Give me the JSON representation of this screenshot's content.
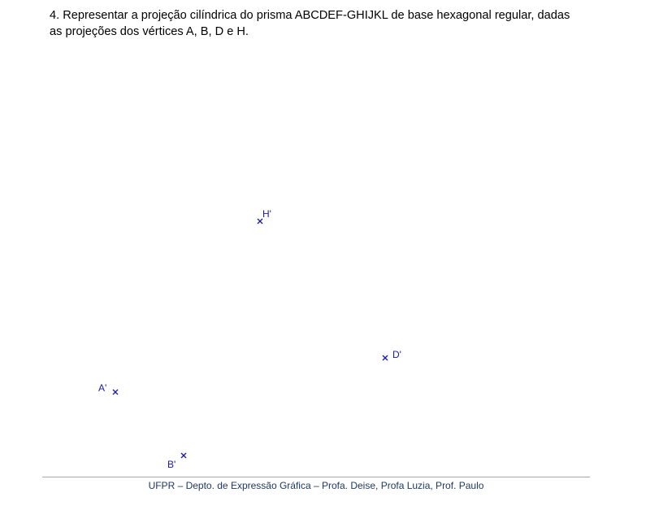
{
  "exercise": {
    "line1": "4. Representar a projeção cilíndrica do prisma ABCDEF-GHIJKL de base hexagonal regular, dadas",
    "line2": "as projeções dos vértices A, B, D e H."
  },
  "points": [
    {
      "id": "H",
      "label": "H'"
    },
    {
      "id": "D",
      "label": "D'"
    },
    {
      "id": "A",
      "label": "A'"
    },
    {
      "id": "B",
      "label": "B'"
    }
  ],
  "colors": {
    "drawing": "#1a1aa8",
    "footer_text": "#1f3864",
    "footer_rule": "#a6a6a6"
  },
  "footer": {
    "text": "UFPR – Depto. de Expressão Gráfica – Profa. Deise, Profa Luzia, Prof. Paulo"
  }
}
